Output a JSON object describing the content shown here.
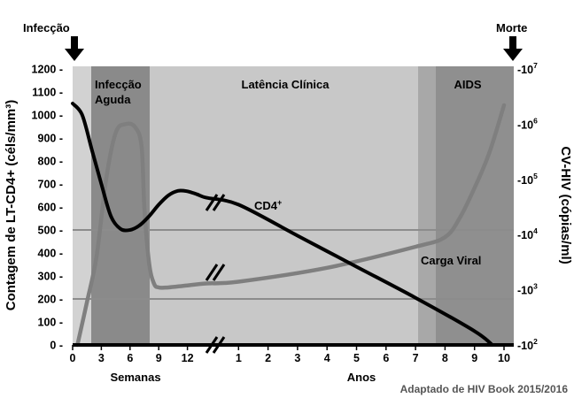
{
  "chart_data": {
    "type": "line",
    "events": {
      "start": "Infecção",
      "end": "Morte"
    },
    "phases": [
      {
        "label_lines": [
          "Infecção",
          "Aguda"
        ]
      },
      {
        "label_lines": [
          "Latência Clínica"
        ]
      },
      {
        "label_lines": [
          "AIDS"
        ]
      }
    ],
    "y_left": {
      "label": "Contagem de LT-CD4+ (céls/mm³)",
      "ticks": [
        0,
        100,
        200,
        300,
        400,
        500,
        600,
        700,
        800,
        900,
        1000,
        1100,
        1200
      ],
      "tick_labels": [
        "0 -",
        "100 -",
        "200 -",
        "300 -",
        "400 -",
        "500 -",
        "600 -",
        "700 -",
        "800 -",
        "900 -",
        "1000 -",
        "1100 -",
        "1200 -"
      ],
      "range": [
        0,
        1200
      ]
    },
    "y_right": {
      "label": "CV-HIV (cópias/ml)",
      "scale": "log",
      "tick_labels": [
        {
          "value": 100,
          "prefix": "-10",
          "exp": "2"
        },
        {
          "value": 1000,
          "prefix": "-10",
          "exp": "3"
        },
        {
          "value": 10000,
          "prefix": "-10",
          "exp": "4"
        },
        {
          "value": 100000,
          "prefix": "-10",
          "exp": "5"
        },
        {
          "value": 1000000,
          "prefix": "-10",
          "exp": "6"
        },
        {
          "value": 10000000,
          "prefix": "-10",
          "exp": "7"
        }
      ],
      "range": [
        100,
        10000000
      ]
    },
    "x_segments": [
      {
        "name": "Semanas",
        "ticks": [
          "0",
          "3",
          "6",
          "9",
          "12"
        ]
      },
      {
        "name": "Anos",
        "ticks": [
          "1",
          "2",
          "3",
          "4",
          "5",
          "6",
          "7",
          "8",
          "9",
          "10"
        ]
      }
    ],
    "reference_lines_left": [
      500,
      200
    ],
    "series": [
      {
        "name": "CD4",
        "label_main": "CD4",
        "label_sup": "+",
        "color": "#000000",
        "axis": "left",
        "points": [
          [
            "w",
            0,
            1050
          ],
          [
            "w",
            1,
            1000
          ],
          [
            "w",
            2,
            850
          ],
          [
            "w",
            3,
            700
          ],
          [
            "w",
            4,
            560
          ],
          [
            "w",
            5,
            505
          ],
          [
            "w",
            6,
            500
          ],
          [
            "w",
            7,
            520
          ],
          [
            "w",
            8,
            560
          ],
          [
            "w",
            9,
            610
          ],
          [
            "w",
            10,
            650
          ],
          [
            "w",
            11,
            670
          ],
          [
            "w",
            12,
            668
          ],
          [
            "w",
            13,
            655
          ],
          [
            "w",
            14,
            640
          ],
          [
            "y",
            1,
            610
          ],
          [
            "y",
            3,
            475
          ],
          [
            "y",
            5,
            340
          ],
          [
            "y",
            7,
            205
          ],
          [
            "y",
            9,
            60
          ],
          [
            "y",
            9.6,
            0
          ]
        ]
      },
      {
        "name": "Carga Viral",
        "label_main": "Carga Viral",
        "color": "#7f7f7f",
        "axis": "right",
        "points": [
          [
            "w",
            0.5,
            100
          ],
          [
            "w",
            1.5,
            600
          ],
          [
            "w",
            2.5,
            4000
          ],
          [
            "w",
            3.5,
            100000
          ],
          [
            "w",
            4.5,
            700000
          ],
          [
            "w",
            5.5,
            1000000
          ],
          [
            "w",
            6.5,
            900000
          ],
          [
            "w",
            7.2,
            400000
          ],
          [
            "w",
            7.5,
            30000
          ],
          [
            "w",
            8,
            3000
          ],
          [
            "w",
            8.5,
            1300
          ],
          [
            "w",
            9,
            1100
          ],
          [
            "w",
            10,
            1100
          ],
          [
            "w",
            12,
            1200
          ],
          [
            "w",
            14,
            1300
          ],
          [
            "y",
            1,
            1400
          ],
          [
            "y",
            4,
            2500
          ],
          [
            "y",
            7,
            6000
          ],
          [
            "y",
            8,
            9000
          ],
          [
            "y",
            8.5,
            20000
          ],
          [
            "y",
            9,
            70000
          ],
          [
            "y",
            9.5,
            300000
          ],
          [
            "y",
            10,
            2200000
          ]
        ]
      }
    ],
    "annotation": "Adaptado de HIV Book 2015/2016"
  }
}
